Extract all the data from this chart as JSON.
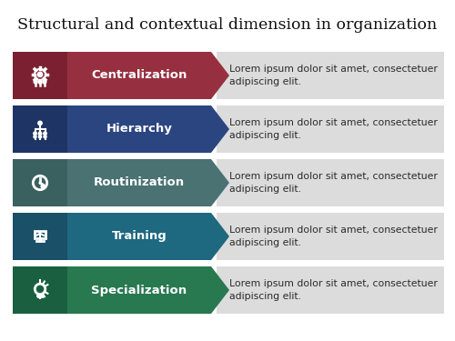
{
  "title": "Structural and contextual dimension in organization",
  "title_fontsize": 12.5,
  "bg": "#ffffff",
  "row_bg": "#dcdcdc",
  "items": [
    {
      "label": "Centralization",
      "dark": "#7B2030",
      "light": "#963040"
    },
    {
      "label": "Hierarchy",
      "dark": "#1E3465",
      "light": "#2B4580"
    },
    {
      "label": "Routinization",
      "dark": "#3A6060",
      "light": "#4A7272"
    },
    {
      "label": "Training",
      "dark": "#1A5068",
      "light": "#1E6880"
    },
    {
      "label": "Specialization",
      "dark": "#1A6040",
      "light": "#287850"
    }
  ],
  "desc_line1": "Lorem ipsum dolor sit amet, consectetuer",
  "desc_line2": "adipiscing elit.",
  "desc_fs": 7.8,
  "label_fs": 9.5
}
